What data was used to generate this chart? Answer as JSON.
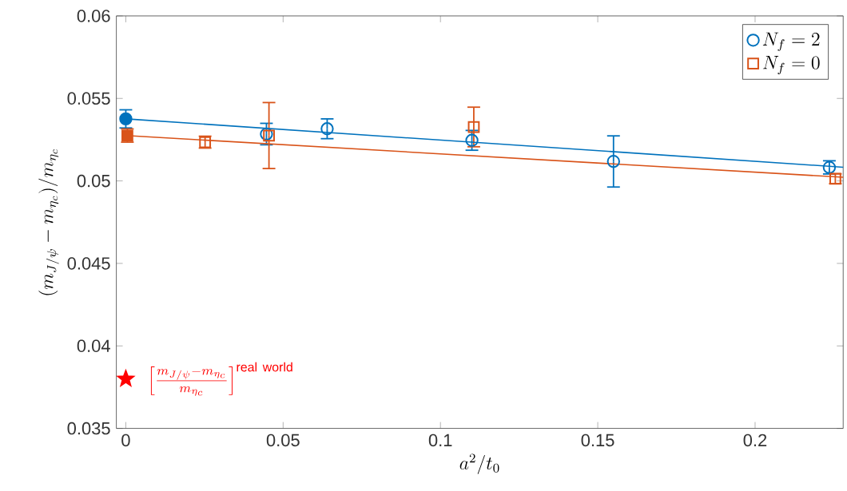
{
  "chart_data": {
    "type": "scatter",
    "xlabel": "a^2/t_0",
    "ylabel": "(m_{J/\\psi}-m_{\\eta_c})/m_{\\eta_c}",
    "xlim": [
      -0.003,
      0.228
    ],
    "ylim": [
      0.035,
      0.06
    ],
    "xticks": [
      0,
      0.05,
      0.1,
      0.15,
      0.2
    ],
    "yticks": [
      0.035,
      0.04,
      0.045,
      0.05,
      0.055,
      0.06
    ],
    "legend": "top right",
    "grid": false,
    "annotations": [
      {
        "text": "\\left[\\frac{m_{J/\\psi}-m_{\\eta_c}}{m_{\\eta_c}}\\right]^{\\mathrm{real\\ world}}",
        "x": 0,
        "y": 0.038
      }
    ],
    "series": [
      {
        "name": "N_f = 2",
        "color": "#0072bd",
        "marker": "circle",
        "x": [
          0.0447,
          0.064,
          0.11,
          0.155,
          0.2236
        ],
        "values": [
          0.05284,
          0.05316,
          0.05246,
          0.05118,
          0.05082
        ],
        "errors": [
          0.00065,
          0.0006,
          0.0006,
          0.00155,
          0.0004
        ]
      },
      {
        "name": "N_f = 0",
        "color": "#d95319",
        "marker": "square",
        "x": [
          0.0252,
          0.0455,
          0.1106,
          0.2255
        ],
        "values": [
          0.05235,
          0.05275,
          0.05327,
          0.05013
        ],
        "errors": [
          0.00036,
          0.002,
          0.0012,
          0.0003
        ]
      },
      {
        "color": "#0072bd",
        "marker": "circle",
        "x": [
          0
        ],
        "values": [
          0.05376
        ],
        "errors": [
          0.00055
        ]
      },
      {
        "color": "#d95319",
        "marker": "square",
        "x": [
          0.0005
        ],
        "values": [
          0.05275
        ],
        "errors": [
          0.0004
        ]
      },
      {
        "type": "line",
        "color": "#0072bd",
        "x": [
          0,
          0.228
        ],
        "values": [
          0.05376,
          0.05083
        ]
      },
      {
        "type": "line",
        "color": "#d95319",
        "x": [
          0,
          0.228
        ],
        "values": [
          0.05275,
          0.05022
        ]
      },
      {
        "color": "#ff0000",
        "marker": "star",
        "x": [
          0
        ],
        "values": [
          0.038
        ]
      }
    ]
  }
}
